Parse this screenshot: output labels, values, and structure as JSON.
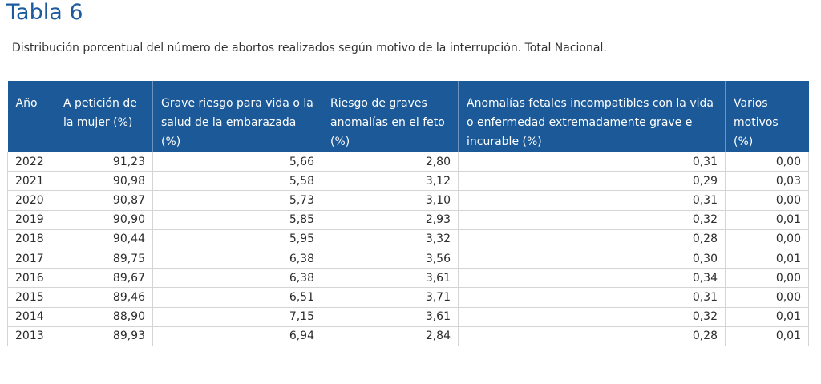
{
  "title": "Tabla 6",
  "subtitle": "Distribución porcentual del número de abortos realizados según motivo de la interrupción. Total Nacional.",
  "table": {
    "headers": [
      "Año",
      "A petición de la mujer (%)",
      "Grave riesgo para vida o la salud de la embarazada (%)",
      "Riesgo de graves anomalías en el feto (%)",
      "Anomalías fetales incompatibles con la vida o enfermedad extremadamente grave e incurable (%)",
      "Varios motivos (%)"
    ],
    "rows": [
      [
        "2022",
        "91,23",
        "5,66",
        "2,80",
        "0,31",
        "0,00"
      ],
      [
        "2021",
        "90,98",
        "5,58",
        "3,12",
        "0,29",
        "0,03"
      ],
      [
        "2020",
        "90,87",
        "5,73",
        "3,10",
        "0,31",
        "0,00"
      ],
      [
        "2019",
        "90,90",
        "5,85",
        "2,93",
        "0,32",
        "0,01"
      ],
      [
        "2018",
        "90,44",
        "5,95",
        "3,32",
        "0,28",
        "0,00"
      ],
      [
        "2017",
        "89,75",
        "6,38",
        "3,56",
        "0,30",
        "0,01"
      ],
      [
        "2016",
        "89,67",
        "6,38",
        "3,61",
        "0,34",
        "0,00"
      ],
      [
        "2015",
        "89,46",
        "6,51",
        "3,71",
        "0,31",
        "0,00"
      ],
      [
        "2014",
        "88,90",
        "7,15",
        "3,61",
        "0,32",
        "0,01"
      ],
      [
        "2013",
        "89,93",
        "6,94",
        "2,84",
        "0,28",
        "0,01"
      ]
    ]
  }
}
